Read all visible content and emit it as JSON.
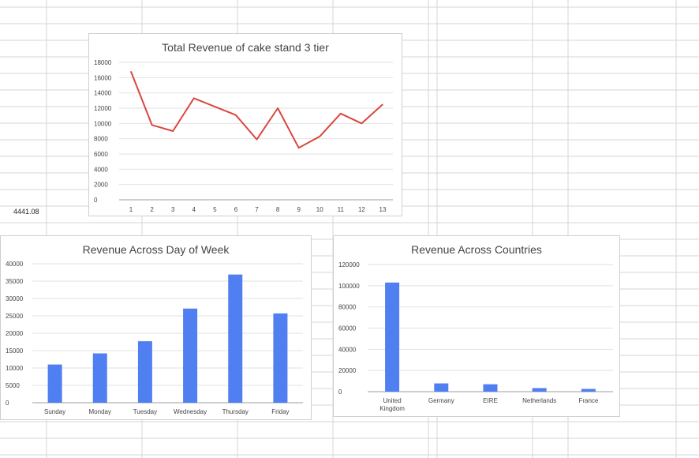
{
  "sheet": {
    "cell_value": "4441.08"
  },
  "colors": {
    "line": "#d9473f",
    "bar": "#4f7ff0",
    "grid": "#e2e2e2",
    "axis": "#9e9e9e",
    "text": "#444444"
  },
  "chart_data": [
    {
      "type": "line",
      "title": "Total Revenue of cake stand 3 tier",
      "x": [
        "1",
        "2",
        "3",
        "4",
        "5",
        "6",
        "7",
        "8",
        "9",
        "10",
        "11",
        "12",
        "13"
      ],
      "values": [
        16800,
        9800,
        9000,
        13300,
        12200,
        11100,
        7900,
        12000,
        6800,
        8300,
        11300,
        10000,
        12500
      ],
      "ylim": [
        0,
        18000
      ],
      "yticks": [
        "0",
        "2000",
        "4000",
        "6000",
        "8000",
        "10000",
        "12000",
        "14000",
        "16000",
        "18000"
      ],
      "xlabel": "",
      "ylabel": "",
      "grid": true,
      "legend": "none"
    },
    {
      "type": "bar",
      "title": "Revenue Across Day of Week",
      "categories": [
        "Sunday",
        "Monday",
        "Tuesday",
        "Wednesday",
        "Thursday",
        "Friday"
      ],
      "values": [
        11000,
        14200,
        17700,
        27100,
        36900,
        25700
      ],
      "ylim": [
        0,
        40000
      ],
      "yticks": [
        "0",
        "5000",
        "10000",
        "15000",
        "20000",
        "25000",
        "30000",
        "35000",
        "40000"
      ],
      "xlabel": "",
      "ylabel": "",
      "grid": true,
      "legend": "none"
    },
    {
      "type": "bar",
      "title": "Revenue Across Countries",
      "categories": [
        "United Kingdom",
        "Germany",
        "EIRE",
        "Netherlands",
        "France"
      ],
      "values": [
        103000,
        7800,
        7000,
        3400,
        2600
      ],
      "ylim": [
        0,
        120000
      ],
      "yticks": [
        "0",
        "20000",
        "40000",
        "60000",
        "80000",
        "100000",
        "120000"
      ],
      "xlabel": "",
      "ylabel": "",
      "grid": true,
      "legend": "none"
    }
  ]
}
